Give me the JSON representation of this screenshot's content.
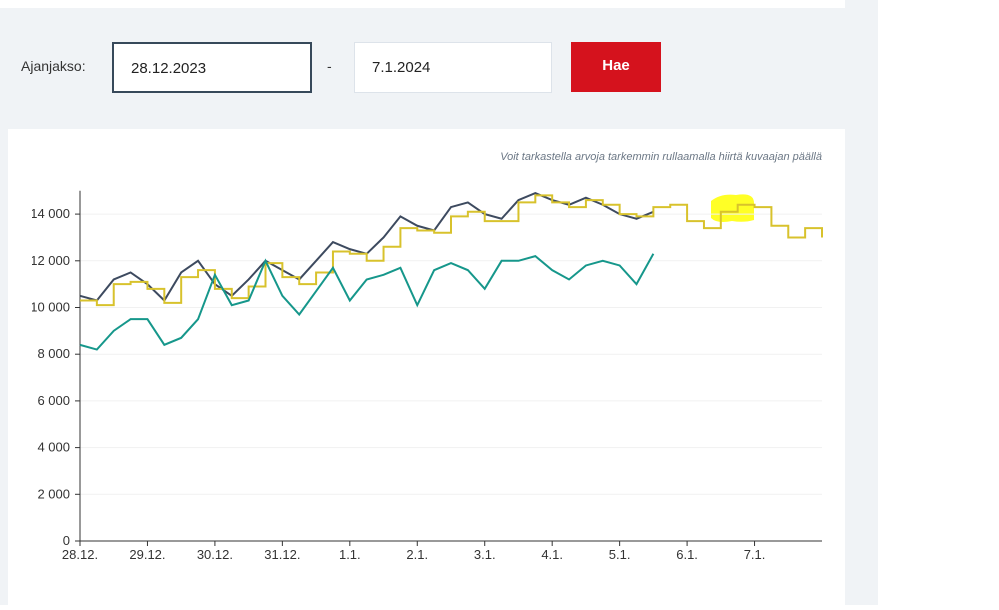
{
  "form": {
    "label": "Ajanjakso:",
    "start": "28.12.2023",
    "separator": "-",
    "end": "7.1.2024",
    "button": "Hae"
  },
  "chart_data": {
    "type": "line",
    "note": "Voit tarkastella arvoja tarkemmin rullaamalla hiirtä kuvaajan päällä",
    "x": [
      0,
      0.25,
      0.5,
      0.75,
      1,
      1.25,
      1.5,
      1.75,
      2,
      2.25,
      2.5,
      2.75,
      3,
      3.25,
      3.5,
      3.75,
      4,
      4.25,
      4.5,
      4.75,
      5,
      5.25,
      5.5,
      5.75,
      6,
      6.25,
      6.5,
      6.75,
      7,
      7.25,
      7.5,
      7.75,
      8,
      8.25,
      8.5,
      8.75,
      9,
      9.25,
      9.5,
      9.75,
      10,
      10.25,
      10.5,
      10.75,
      11
    ],
    "series": [
      {
        "color": "#3d4a5f",
        "values": [
          10500,
          10300,
          11200,
          11500,
          11000,
          10300,
          11500,
          12000,
          11000,
          10500,
          11200,
          12000,
          11600,
          11200,
          12000,
          12800,
          12500,
          12300,
          13000,
          13900,
          13500,
          13300,
          14300,
          14500,
          14000,
          13800,
          14600,
          14900,
          14600,
          14400,
          14700,
          14400,
          14000,
          13800,
          14100,
          null,
          null,
          null,
          null,
          null,
          null,
          null,
          null,
          null,
          null
        ]
      },
      {
        "color": "#d8c22c",
        "step": true,
        "values": [
          10300,
          10100,
          11000,
          11100,
          10800,
          10200,
          11300,
          11600,
          10800,
          10400,
          10900,
          11900,
          11300,
          11000,
          11500,
          12400,
          12300,
          12000,
          12600,
          13400,
          13300,
          13200,
          13900,
          14100,
          13700,
          13700,
          14500,
          14800,
          14500,
          14300,
          14600,
          14400,
          14000,
          13900,
          14300,
          14400,
          13700,
          13400,
          14100,
          14400,
          14300,
          13500,
          13000,
          13400,
          13000
        ]
      },
      {
        "color": "#16978b",
        "values": [
          8400,
          8200,
          9000,
          9500,
          9500,
          8400,
          8700,
          9500,
          11400,
          10100,
          10300,
          12000,
          10500,
          9700,
          10700,
          11700,
          10300,
          11200,
          11400,
          11700,
          10100,
          11600,
          11900,
          11600,
          10800,
          12000,
          12000,
          12200,
          11600,
          11200,
          11800,
          12000,
          11800,
          11000,
          12300,
          null,
          null,
          null,
          null,
          null,
          null,
          null,
          null,
          null,
          null
        ]
      }
    ],
    "xlim": [
      0,
      11
    ],
    "xticks": [
      {
        "value": 0,
        "label": "28.12."
      },
      {
        "value": 1,
        "label": "29.12."
      },
      {
        "value": 2,
        "label": "30.12."
      },
      {
        "value": 3,
        "label": "31.12."
      },
      {
        "value": 4,
        "label": "1.1."
      },
      {
        "value": 5,
        "label": "2.1."
      },
      {
        "value": 6,
        "label": "3.1."
      },
      {
        "value": 7,
        "label": "4.1."
      },
      {
        "value": 8,
        "label": "5.1."
      },
      {
        "value": 9,
        "label": "6.1."
      },
      {
        "value": 10,
        "label": "7.1."
      }
    ],
    "ylim": [
      0,
      15000
    ],
    "yticks": [
      0,
      {
        "value": 2000,
        "label": "2 000"
      },
      {
        "value": 4000,
        "label": "4 000"
      },
      {
        "value": 6000,
        "label": "6 000"
      },
      {
        "value": 8000,
        "label": "8 000"
      },
      {
        "value": 10000,
        "label": "10 000"
      },
      {
        "value": 12000,
        "label": "12 000"
      },
      {
        "value": 14000,
        "label": "14 000"
      }
    ],
    "grid": true
  }
}
